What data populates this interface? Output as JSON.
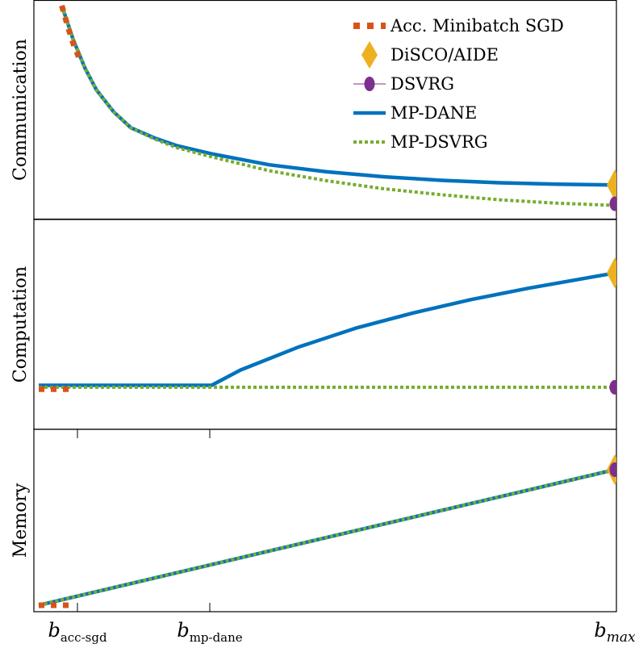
{
  "chart_data": {
    "type": "line",
    "x_ticks": [
      {
        "main": "b",
        "sub": "acc-sgd",
        "sub_italic": false
      },
      {
        "main": "b",
        "sub": "mp-dane",
        "sub_italic": false
      },
      {
        "main": "b",
        "sub": "max",
        "sub_italic": true
      }
    ],
    "legend": {
      "placement": "top-right",
      "entries": [
        {
          "label": "Acc. Minibatch SGD",
          "color": "#D95319",
          "style": "dash-square"
        },
        {
          "label": "DiSCO/AIDE",
          "color": "#EDB120",
          "style": "diamond"
        },
        {
          "label": "DSVRG",
          "color": "#7E2F8E",
          "style": "circle"
        },
        {
          "label": "MP-DANE",
          "color": "#0072BD",
          "style": "solid"
        },
        {
          "label": "MP-DSVRG",
          "color": "#77AC30",
          "style": "dotted"
        }
      ]
    },
    "panels": [
      {
        "ylabel": "Communication",
        "ylim": [
          0,
          1
        ],
        "series": [
          {
            "name": "MP-DANE",
            "points": [
              [
                0.04,
                1.02
              ],
              [
                0.06,
                0.85
              ],
              [
                0.08,
                0.71
              ],
              [
                0.1,
                0.6
              ],
              [
                0.13,
                0.49
              ],
              [
                0.16,
                0.41
              ],
              [
                0.2,
                0.36
              ],
              [
                0.24,
                0.32
              ],
              [
                0.3,
                0.28
              ],
              [
                0.4,
                0.225
              ],
              [
                0.5,
                0.19
              ],
              [
                0.6,
                0.165
              ],
              [
                0.7,
                0.147
              ],
              [
                0.8,
                0.135
              ],
              [
                0.9,
                0.128
              ],
              [
                1.0,
                0.124
              ]
            ]
          },
          {
            "name": "MP-DSVRG",
            "points": [
              [
                0.04,
                1.02
              ],
              [
                0.06,
                0.85
              ],
              [
                0.08,
                0.71
              ],
              [
                0.1,
                0.6
              ],
              [
                0.13,
                0.49
              ],
              [
                0.16,
                0.41
              ],
              [
                0.2,
                0.355
              ],
              [
                0.24,
                0.31
              ],
              [
                0.3,
                0.265
              ],
              [
                0.4,
                0.195
              ],
              [
                0.5,
                0.145
              ],
              [
                0.6,
                0.105
              ],
              [
                0.7,
                0.075
              ],
              [
                0.8,
                0.05
              ],
              [
                0.9,
                0.033
              ],
              [
                1.0,
                0.022
              ]
            ]
          },
          {
            "name": "Acc. Minibatch SGD",
            "points": [
              [
                0.04,
                1.02
              ],
              [
                0.05,
                0.92
              ],
              [
                0.06,
                0.83
              ],
              [
                0.07,
                0.76
              ]
            ]
          },
          {
            "name": "DiSCO/AIDE",
            "points": [
              [
                1.0,
                0.124
              ]
            ]
          },
          {
            "name": "DSVRG",
            "points": [
              [
                1.0,
                0.03
              ]
            ]
          }
        ]
      },
      {
        "ylabel": "Computation",
        "ylim": [
          0,
          1
        ],
        "series": [
          {
            "name": "MP-DANE",
            "points": [
              [
                0.0,
                0.18
              ],
              [
                0.3,
                0.18
              ],
              [
                0.35,
                0.26
              ],
              [
                0.45,
                0.38
              ],
              [
                0.55,
                0.48
              ],
              [
                0.65,
                0.56
              ],
              [
                0.75,
                0.63
              ],
              [
                0.85,
                0.69
              ],
              [
                1.0,
                0.77
              ]
            ]
          },
          {
            "name": "MP-DSVRG",
            "points": [
              [
                0.0,
                0.17
              ],
              [
                1.0,
                0.17
              ]
            ]
          },
          {
            "name": "Acc. Minibatch SGD",
            "points": [
              [
                0.0,
                0.16
              ],
              [
                0.055,
                0.16
              ]
            ]
          },
          {
            "name": "DiSCO/AIDE",
            "points": [
              [
                1.0,
                0.77
              ]
            ]
          },
          {
            "name": "DSVRG",
            "points": [
              [
                1.0,
                0.17
              ]
            ]
          }
        ]
      },
      {
        "ylabel": "Memory",
        "ylim": [
          0,
          1
        ],
        "series": [
          {
            "name": "MP-DANE",
            "points": [
              [
                0.0,
                0.0
              ],
              [
                1.0,
                0.8
              ]
            ]
          },
          {
            "name": "MP-DSVRG",
            "points": [
              [
                0.0,
                0.0
              ],
              [
                1.0,
                0.8
              ]
            ]
          },
          {
            "name": "Acc. Minibatch SGD",
            "points": [
              [
                0.0,
                0.0
              ],
              [
                0.055,
                0.0
              ]
            ]
          },
          {
            "name": "DiSCO/AIDE",
            "points": [
              [
                1.0,
                0.8
              ]
            ]
          },
          {
            "name": "DSVRG",
            "points": [
              [
                1.0,
                0.8
              ]
            ]
          }
        ]
      }
    ]
  }
}
